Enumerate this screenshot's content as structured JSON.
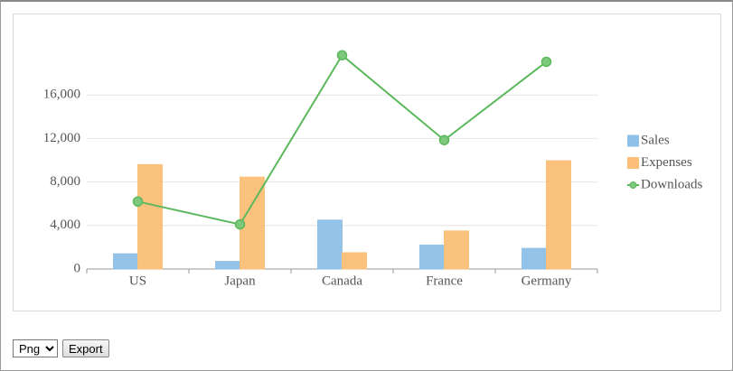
{
  "chart_data": {
    "type": "bar-line",
    "categories": [
      "US",
      "Japan",
      "Canada",
      "France",
      "Germany"
    ],
    "series": [
      {
        "name": "Sales",
        "type": "bar",
        "color": "#8ec0e8",
        "values": [
          1400,
          700,
          4500,
          2200,
          1900
        ]
      },
      {
        "name": "Expenses",
        "type": "bar",
        "color": "#fbbf77",
        "values": [
          9600,
          8450,
          1500,
          3500,
          9950
        ]
      },
      {
        "name": "Downloads",
        "type": "line",
        "color": "#5cb85c",
        "values": [
          6200,
          4100,
          19650,
          11850,
          19050
        ]
      }
    ],
    "ylim": [
      0,
      20000
    ],
    "yticks": [
      0,
      {
        "value": 4000,
        "label": "4,000"
      },
      {
        "value": 8000,
        "label": "8,000"
      },
      {
        "value": 12000,
        "label": "12,000"
      },
      {
        "value": 16000,
        "label": "16,000"
      }
    ],
    "grid": true,
    "legend": "right"
  },
  "controls": {
    "format_options": [
      "Png"
    ],
    "export_button": "Export"
  }
}
